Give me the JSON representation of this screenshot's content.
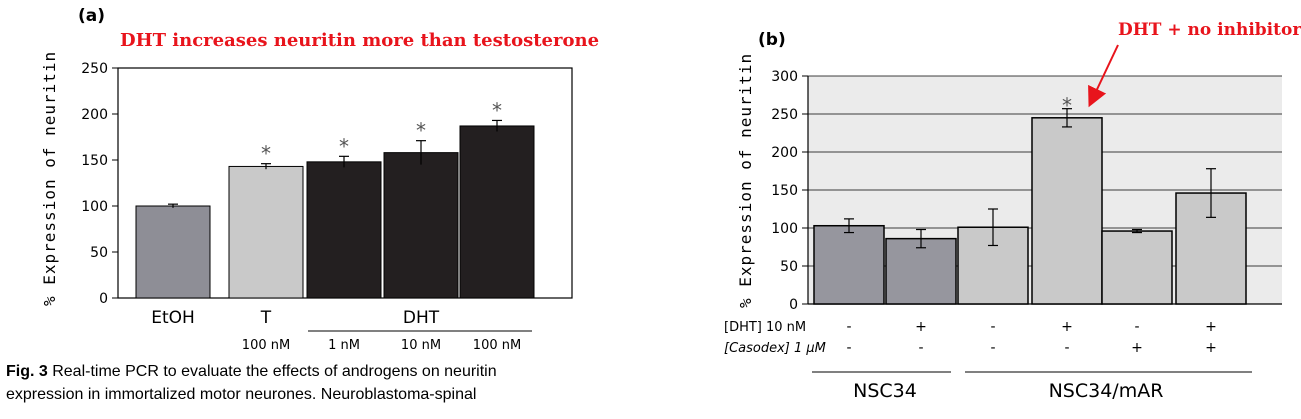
{
  "panel_a": {
    "label": "(a)",
    "annotation": "DHT increases neuritin more than testosterone",
    "ylabel": "% Expression of neuritin"
  },
  "panel_b": {
    "label": "(b)",
    "annotation": "DHT + no inhibitor",
    "ylabel": "% Expression of neuritin",
    "dht_row_label": "[DHT] 10 nM",
    "casodex_row_label": "[Casodex] 1 µM"
  },
  "caption": {
    "line1_bold": "Fig. 3",
    "line1": " Real-time PCR to evaluate the effects of androgens on neuritin",
    "line2": "expression in immortalized motor neurones. Neuroblastoma-spinal"
  },
  "chart_data": [
    {
      "type": "bar",
      "categories": [
        "EtOH",
        "T 100 nM",
        "DHT 1 nM",
        "DHT 10 nM",
        "DHT 100 nM"
      ],
      "values": [
        100,
        143,
        148,
        158,
        187
      ],
      "errors": [
        2,
        3,
        6,
        13,
        6
      ],
      "significant": [
        false,
        true,
        true,
        true,
        true
      ],
      "colors": [
        "#8e8e96",
        "#c9c9c9",
        "#231f20",
        "#231f20",
        "#231f20"
      ],
      "ylim": [
        0,
        250
      ],
      "yticks": [
        0,
        50,
        100,
        150,
        200,
        250
      ],
      "category_labels": [
        "EtOH",
        "T",
        "",
        "DHT",
        ""
      ],
      "sublabels": [
        "",
        "100 nM",
        "1 nM",
        "10 nM",
        "100 nM"
      ],
      "grid": false
    },
    {
      "type": "bar",
      "values": [
        103,
        86,
        101,
        245,
        96,
        146
      ],
      "errors": [
        9,
        12,
        24,
        12,
        2,
        32
      ],
      "significant": [
        false,
        false,
        false,
        true,
        false,
        false
      ],
      "colors": [
        "#96969e",
        "#96969e",
        "#c9c9c9",
        "#c9c9c9",
        "#c9c9c9",
        "#c9c9c9"
      ],
      "ylim": [
        0,
        300
      ],
      "yticks": [
        0,
        50,
        100,
        150,
        200,
        250,
        300
      ],
      "dht": [
        "-",
        "+",
        "-",
        "+",
        "-",
        "+"
      ],
      "casodex": [
        "-",
        "-",
        "-",
        "-",
        "+",
        "+"
      ],
      "groups": [
        {
          "name": "NSC34",
          "bars": [
            0,
            1
          ]
        },
        {
          "name": "NSC34/mAR",
          "bars": [
            2,
            3,
            4,
            5
          ]
        }
      ],
      "grid": true
    }
  ]
}
